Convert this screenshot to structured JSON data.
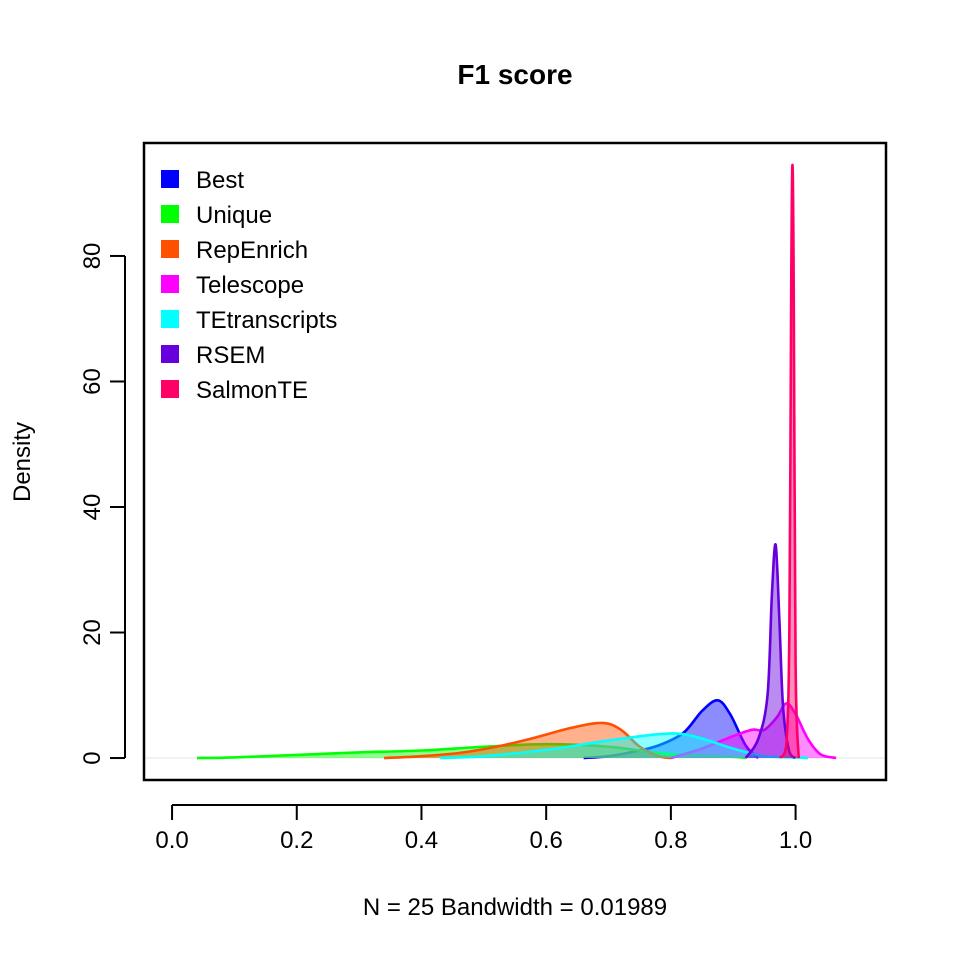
{
  "chart_data": {
    "type": "area",
    "title": "F1 score",
    "xlabel": "N = 25   Bandwidth = 0.01989",
    "ylabel": "Density",
    "xlim": [
      -0.045,
      1.145
    ],
    "ylim": [
      -3.5,
      98.0
    ],
    "x_ticks": [
      "0.0",
      "0.2",
      "0.4",
      "0.6",
      "0.8",
      "1.0"
    ],
    "x_tick_values": [
      0.0,
      0.2,
      0.4,
      0.6,
      0.8,
      1.0
    ],
    "y_ticks": [
      "0",
      "20",
      "40",
      "60",
      "80"
    ],
    "y_tick_values": [
      0,
      20,
      40,
      60,
      80
    ],
    "legend_position": "top-left",
    "series": [
      {
        "name": "Best",
        "color": "#0000ff",
        "x": [
          0.66,
          0.7,
          0.74,
          0.78,
          0.82,
          0.85,
          0.875,
          0.895,
          0.92,
          0.94
        ],
        "y": [
          0.0,
          0.3,
          1.0,
          2.0,
          4.0,
          7.5,
          9.2,
          7.0,
          2.0,
          0.0
        ]
      },
      {
        "name": "Unique",
        "color": "#00ff00",
        "x": [
          0.04,
          0.1,
          0.2,
          0.3,
          0.4,
          0.5,
          0.6,
          0.7,
          0.8,
          0.9,
          0.92
        ],
        "y": [
          0.0,
          0.1,
          0.5,
          0.9,
          1.2,
          1.8,
          2.2,
          1.8,
          0.6,
          0.2,
          0.0
        ]
      },
      {
        "name": "RepEnrich",
        "color": "#ff5000",
        "x": [
          0.34,
          0.4,
          0.46,
          0.52,
          0.58,
          0.64,
          0.69,
          0.72,
          0.75,
          0.78,
          0.8
        ],
        "y": [
          0.0,
          0.3,
          0.8,
          1.8,
          3.2,
          4.8,
          5.6,
          4.5,
          1.8,
          0.3,
          0.0
        ]
      },
      {
        "name": "Telescope",
        "color": "#ff00ff",
        "x": [
          0.8,
          0.85,
          0.9,
          0.93,
          0.95,
          0.97,
          0.985,
          1.0,
          1.02,
          1.04,
          1.065
        ],
        "y": [
          0.0,
          1.5,
          3.5,
          4.5,
          4.5,
          6.5,
          8.7,
          7.0,
          3.0,
          0.6,
          0.0
        ]
      },
      {
        "name": "TEtranscripts",
        "color": "#00ffff",
        "x": [
          0.43,
          0.5,
          0.6,
          0.7,
          0.78,
          0.82,
          0.86,
          0.9,
          0.95,
          1.0,
          1.02
        ],
        "y": [
          0.0,
          0.3,
          1.3,
          2.8,
          3.8,
          3.8,
          2.8,
          1.5,
          0.3,
          0.1,
          0.0
        ]
      },
      {
        "name": "RSEM",
        "color": "#6600dd",
        "x": [
          0.92,
          0.94,
          0.955,
          0.962,
          0.968,
          0.974,
          0.98,
          0.99,
          1.0
        ],
        "y": [
          0.0,
          3.0,
          10.0,
          26.0,
          34.0,
          22.0,
          8.0,
          1.0,
          0.0
        ]
      },
      {
        "name": "SalmonTE",
        "color": "#ff0066",
        "x": [
          0.975,
          0.985,
          0.99,
          0.993,
          0.995,
          0.997,
          1.0,
          1.005
        ],
        "y": [
          0.0,
          2.0,
          20.0,
          75.0,
          94.5,
          75.0,
          15.0,
          0.0
        ]
      }
    ]
  }
}
